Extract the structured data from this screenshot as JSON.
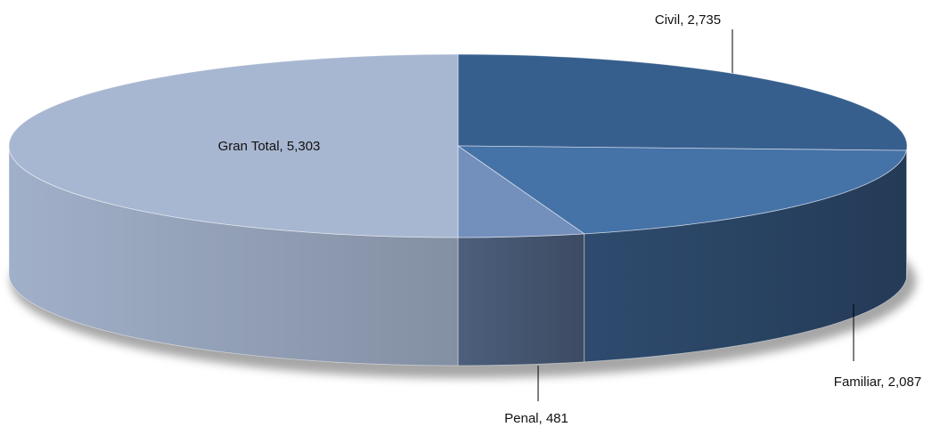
{
  "chart_data": {
    "type": "pie",
    "title": "",
    "categories": [
      "Civil",
      "Familiar",
      "Penal",
      "Gran Total"
    ],
    "values": [
      2735,
      2087,
      481,
      5303
    ],
    "labels": [
      "Civil, 2,735",
      "Familiar, 2,087",
      "Penal, 481",
      "Gran Total, 5,303"
    ],
    "colors": [
      "#375f8e",
      "#4572a7",
      "#7390bc",
      "#a8b7d1"
    ],
    "legend": "none",
    "style": "3d"
  }
}
